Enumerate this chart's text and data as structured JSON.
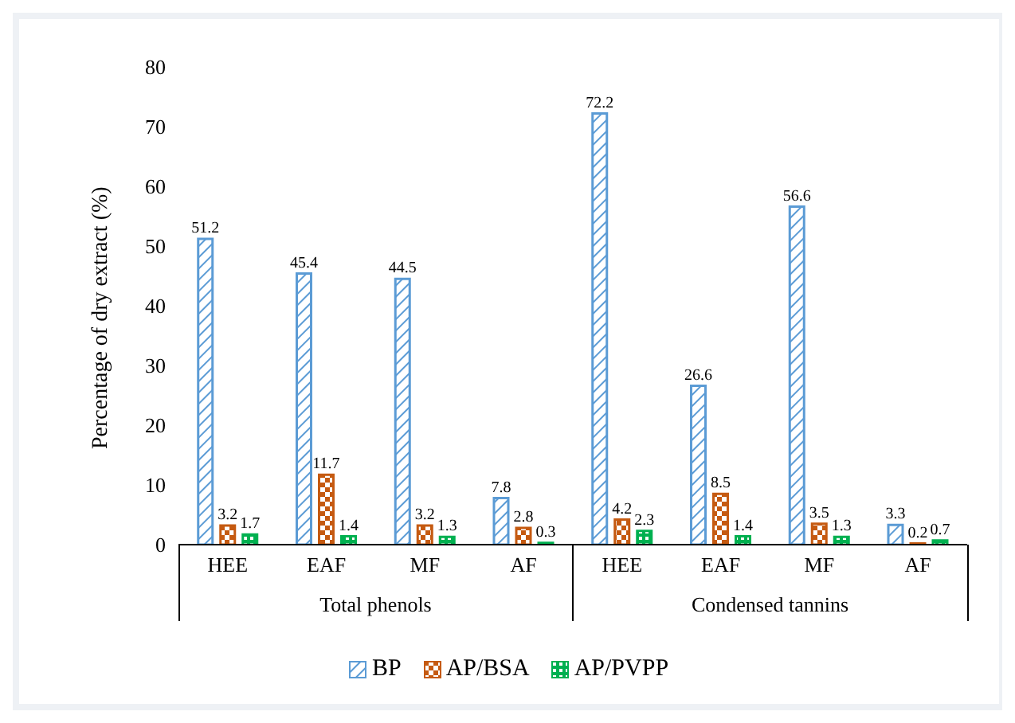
{
  "chart_data": {
    "type": "bar",
    "ylabel": "Percentage of dry extract (%)",
    "categories": [
      "HEE",
      "EAF",
      "MF",
      "AF",
      "HEE",
      "EAF",
      "MF",
      "AF"
    ],
    "series": [
      {
        "name": "BP",
        "color": "#5b9bd5",
        "values": [
          51.2,
          45.4,
          44.5,
          7.8,
          72.2,
          26.6,
          56.6,
          3.3
        ]
      },
      {
        "name": "AP/BSA",
        "color": "#c55a11",
        "values": [
          3.2,
          11.7,
          3.2,
          2.8,
          4.2,
          8.5,
          3.5,
          0.2
        ]
      },
      {
        "name": "AP/PVPP",
        "color": "#00b050",
        "values": [
          1.7,
          1.4,
          1.3,
          0.3,
          2.3,
          1.4,
          1.3,
          0.7
        ]
      }
    ],
    "annotations": [
      "Total phenols",
      "Condensed tannins"
    ],
    "ylim": [
      0,
      80
    ],
    "yticks": [
      0,
      10,
      20,
      30,
      40,
      50,
      60,
      70,
      80
    ],
    "grid": false,
    "legend": "bottom",
    "data_labels": true
  }
}
